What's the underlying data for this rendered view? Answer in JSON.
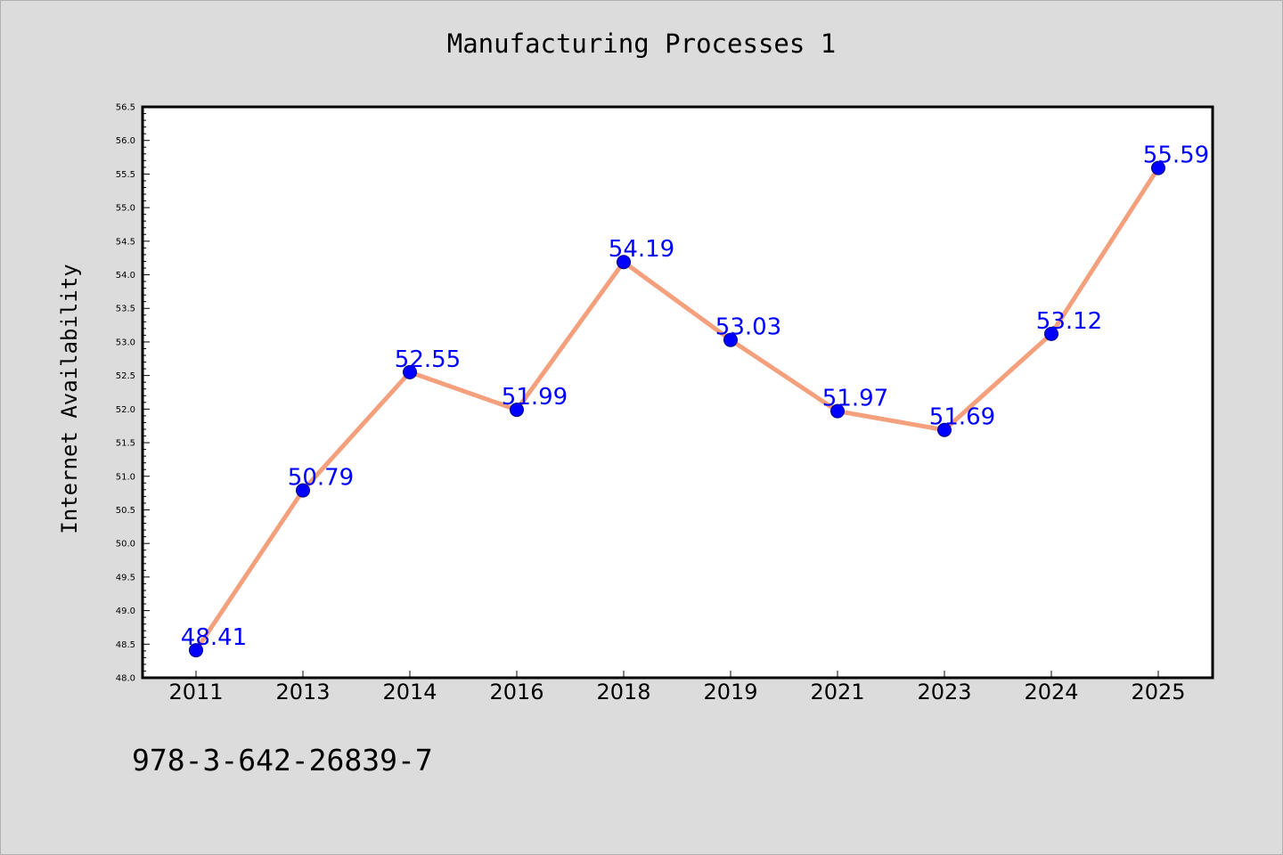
{
  "chart_data": {
    "type": "line",
    "title": "Manufacturing Processes 1",
    "xlabel": "",
    "ylabel": "Internet Availability",
    "categories": [
      "2011",
      "2013",
      "2014",
      "2016",
      "2018",
      "2019",
      "2021",
      "2023",
      "2024",
      "2025"
    ],
    "series": [
      {
        "values": [
          48.41,
          50.79,
          52.55,
          51.99,
          54.19,
          53.03,
          51.97,
          51.69,
          53.12,
          55.59
        ],
        "data_labels": [
          "48.41",
          "50.79",
          "52.55",
          "51.99",
          "54.19",
          "53.03",
          "51.97",
          "51.69",
          "53.12",
          "55.59"
        ]
      }
    ],
    "ylim": [
      48.0,
      56.5
    ],
    "y_ticks": [
      "48.0",
      "48.5",
      "49.0",
      "49.5",
      "50.0",
      "50.5",
      "51.0",
      "51.5",
      "52.0",
      "52.5",
      "53.0",
      "53.5",
      "54.0",
      "54.5",
      "55.0",
      "55.5",
      "56.0",
      "56.5"
    ],
    "grid": false,
    "legend": "none",
    "colors": {
      "line": "#f4a07c",
      "marker": "#0000ff",
      "marker_edge": "#000080",
      "data_label": "#0000ff",
      "background": "#dcdcdc",
      "plot_background": "#ffffff"
    }
  },
  "footer": {
    "isbn": "978-3-642-26839-7"
  }
}
